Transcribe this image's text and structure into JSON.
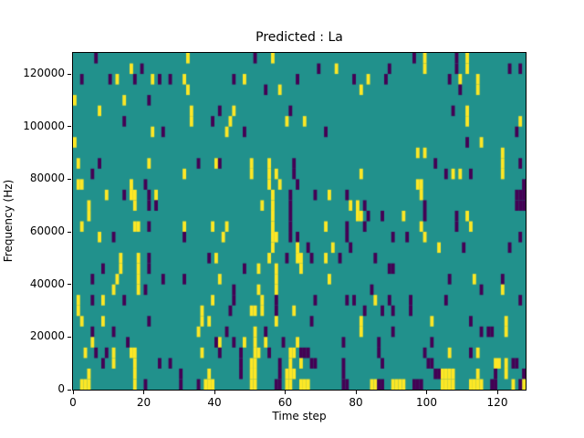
{
  "figure": {
    "background": "#ffffff"
  },
  "chart_data": {
    "type": "heatmap",
    "title": "Predicted : La",
    "xlabel": "Time step",
    "ylabel": "Frequency (Hz)",
    "xlim": [
      0,
      128
    ],
    "ylim": [
      0,
      128000
    ],
    "x_ticks": [
      0,
      20,
      40,
      60,
      80,
      100,
      120
    ],
    "y_ticks": [
      0,
      20000,
      40000,
      60000,
      80000,
      100000,
      120000
    ],
    "grid": false,
    "legend_position": "none",
    "n_cols": 128,
    "n_rows": 32,
    "row_order": "top-to-bottom",
    "bin_height_hz": 4000,
    "colors": {
      "background_value_color": "#21918c",
      "high_value_color": "#fde725",
      "low_value_color": "#440154",
      "axis_color": "#000000",
      "text_color": "#000000"
    },
    "cells_note": "sparse cells per row; y = yellow (#fde725) columns, p = purple (#440154) columns; all other cells teal (#21918c)",
    "rows": [
      {
        "y": [
          32,
          56,
          99,
          111
        ],
        "p": [
          6,
          51,
          96,
          108
        ]
      },
      {
        "y": [
          16,
          74,
          99,
          111
        ],
        "p": [
          19,
          69,
          89,
          108,
          123,
          126
        ]
      },
      {
        "y": [
          12,
          22,
          31,
          48,
          83,
          109,
          114
        ],
        "p": [
          2,
          10,
          17,
          24,
          27,
          45,
          63,
          79,
          88,
          106
        ]
      },
      {
        "y": [
          32,
          58,
          81,
          114
        ],
        "p": [
          54,
          109
        ]
      },
      {
        "y": [
          0,
          14
        ],
        "p": [
          21
        ]
      },
      {
        "y": [
          7,
          33,
          45,
          111
        ],
        "p": [
          41,
          61,
          107
        ]
      },
      {
        "y": [
          33,
          44,
          60,
          65,
          111,
          126
        ],
        "p": [
          14,
          39
        ]
      },
      {
        "y": [
          22,
          43
        ],
        "p": [
          25,
          48,
          71,
          125
        ]
      },
      {
        "y": [
          0,
          115
        ],
        "p": [
          111
        ]
      },
      {
        "y": [
          97,
          99,
          121
        ],
        "p": []
      },
      {
        "y": [
          1,
          21,
          40,
          50,
          55,
          121
        ],
        "p": [
          7,
          35,
          41,
          62,
          102,
          126
        ]
      },
      {
        "y": [
          31,
          50,
          55,
          57,
          81,
          107,
          109,
          121
        ],
        "p": [
          5,
          62,
          105,
          112
        ]
      },
      {
        "y": [
          1,
          2,
          16,
          55,
          58,
          97,
          98
        ],
        "p": [
          20,
          63,
          127
        ]
      },
      {
        "y": [
          9,
          16,
          17,
          23,
          56,
          72,
          98
        ],
        "p": [
          14,
          21,
          61,
          68,
          77,
          125,
          126,
          127
        ]
      },
      {
        "y": [
          4,
          17,
          53,
          56,
          78,
          80
        ],
        "p": [
          21,
          23,
          61,
          82,
          99,
          125,
          126,
          127
        ]
      },
      {
        "y": [
          4,
          56,
          80,
          81,
          93,
          111
        ],
        "p": [
          61,
          83,
          87,
          99,
          108
        ]
      },
      {
        "y": [
          2,
          17,
          18,
          31,
          39,
          43,
          56,
          71,
          98,
          112
        ],
        "p": [
          21,
          61,
          77,
          82,
          108
        ]
      },
      {
        "y": [
          7,
          42,
          56,
          57,
          99
        ],
        "p": [
          11,
          31,
          61,
          63,
          77,
          90,
          94,
          126
        ]
      },
      {
        "y": [
          56,
          63,
          73,
          103
        ],
        "p": [
          66,
          78,
          110,
          123
        ]
      },
      {
        "y": [
          13,
          18,
          40,
          55,
          63,
          64,
          71
        ],
        "p": [
          21,
          38,
          60,
          67,
          75,
          85
        ]
      },
      {
        "y": [
          13,
          18,
          52,
          57,
          64
        ],
        "p": [
          8,
          21,
          48,
          89,
          90
        ]
      },
      {
        "y": [
          12,
          18,
          41,
          57,
          72,
          113
        ],
        "p": [
          5,
          25,
          31,
          106,
          121
        ]
      },
      {
        "y": [
          11,
          18,
          52,
          57,
          121
        ],
        "p": [
          20,
          45,
          84,
          115
        ]
      },
      {
        "y": [
          1,
          8,
          39,
          53,
          85
        ],
        "p": [
          5,
          14,
          45,
          57,
          68,
          77,
          79,
          89,
          95,
          105,
          126
        ]
      },
      {
        "y": [
          1,
          36,
          50,
          51,
          53,
          62
        ],
        "p": [
          44,
          57,
          82,
          87,
          90,
          95
        ]
      },
      {
        "y": [
          2,
          8,
          36,
          38,
          57,
          81,
          101,
          122
        ],
        "p": [
          21,
          67,
          112
        ]
      },
      {
        "y": [
          35,
          51,
          81,
          122
        ],
        "p": [
          5,
          11,
          43,
          54,
          90,
          115,
          117,
          118
        ]
      },
      {
        "y": [
          5,
          41,
          48,
          51,
          54,
          63
        ],
        "p": [
          15,
          40,
          45,
          59,
          76,
          86,
          101
        ]
      },
      {
        "y": [
          3,
          11,
          16,
          17,
          36,
          51,
          52,
          61,
          62,
          106,
          114
        ],
        "p": [
          6,
          9,
          41,
          47,
          55,
          64,
          65,
          66,
          86,
          99,
          112
        ]
      },
      {
        "y": [
          11,
          17,
          50,
          51,
          61,
          64,
          119,
          120,
          122
        ],
        "p": [
          8,
          24,
          27,
          47,
          58,
          67,
          68,
          76,
          87,
          100,
          101,
          124,
          125
        ]
      },
      {
        "y": [
          4,
          17,
          38,
          50,
          51,
          60,
          61,
          62,
          104,
          105,
          106,
          107,
          114,
          122
        ],
        "p": [
          30,
          47,
          58,
          76,
          102,
          103,
          119,
          127
        ]
      },
      {
        "y": [
          2,
          3,
          4,
          17,
          37,
          38,
          39,
          50,
          51,
          60,
          61,
          64,
          65,
          66,
          84,
          85,
          90,
          91,
          92,
          93,
          104,
          105,
          106,
          107,
          112,
          113,
          114,
          115,
          124,
          127
        ],
        "p": [
          20,
          30,
          35,
          57,
          58,
          76,
          77,
          86,
          87,
          96,
          97,
          98,
          118,
          119,
          126
        ]
      }
    ]
  }
}
